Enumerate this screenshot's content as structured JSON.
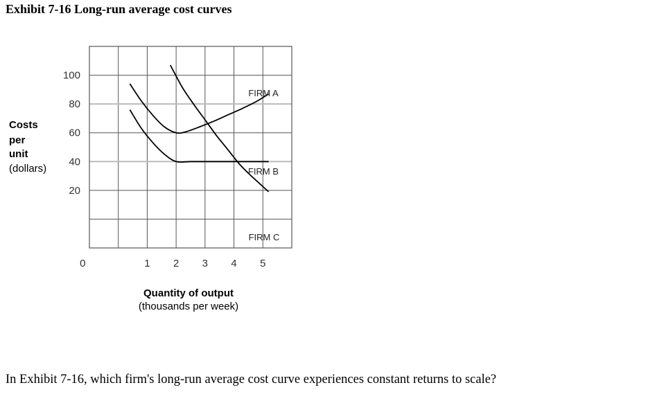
{
  "title": "Exhibit 7-16 Long-run average cost curves",
  "question": "In Exhibit 7-16, which firm's long-run average cost curve experiences constant returns to scale?",
  "colors": {
    "curve": "#000000",
    "grid": "#555555",
    "highlight": "#bbbbbb"
  },
  "chart_data": {
    "type": "line",
    "title": "Exhibit 7-16 Long-run average cost curves",
    "ylabel": [
      "Costs",
      "per",
      "unit",
      "(dollars)"
    ],
    "xlabel": [
      "Quantity of output",
      "(thousands per week)"
    ],
    "xlim": [
      -1,
      6
    ],
    "ylim": [
      -20,
      120
    ],
    "origin_label": "0",
    "xticks": [
      1,
      2,
      3,
      4,
      5
    ],
    "xtick_labels": [
      "1",
      "2",
      "3",
      "4",
      "5"
    ],
    "yticks": [
      20,
      40,
      60,
      80,
      100
    ],
    "ytick_labels": [
      "20",
      "40",
      "60",
      "80",
      "100"
    ],
    "grid": true,
    "highlight_lines_y": [
      80,
      40
    ],
    "series": [
      {
        "name": "FIRM A",
        "label": "FIRM A",
        "x": [
          0.4,
          0.8,
          1.2,
          1.6,
          2.0,
          2.3,
          2.8,
          3.3,
          3.8,
          4.3,
          4.8,
          5.2
        ],
        "y": [
          94,
          82,
          72,
          64,
          60,
          60.5,
          64,
          68,
          72.5,
          77,
          82,
          87
        ]
      },
      {
        "name": "FIRM B",
        "label": "FIRM B",
        "x": [
          0.4,
          0.8,
          1.2,
          1.6,
          2.0,
          2.5,
          3.0,
          3.5,
          4.0,
          4.5,
          5.2
        ],
        "y": [
          76,
          63,
          53,
          45,
          40,
          40,
          40,
          40,
          40,
          40,
          40
        ]
      },
      {
        "name": "FIRM C",
        "label": "FIRM C",
        "x": [
          1.8,
          2.2,
          2.6,
          3.0,
          3.4,
          3.8,
          4.2,
          4.6,
          5.2
        ],
        "y": [
          107,
          92,
          80,
          69,
          58,
          48,
          38,
          30,
          19
        ]
      }
    ]
  }
}
